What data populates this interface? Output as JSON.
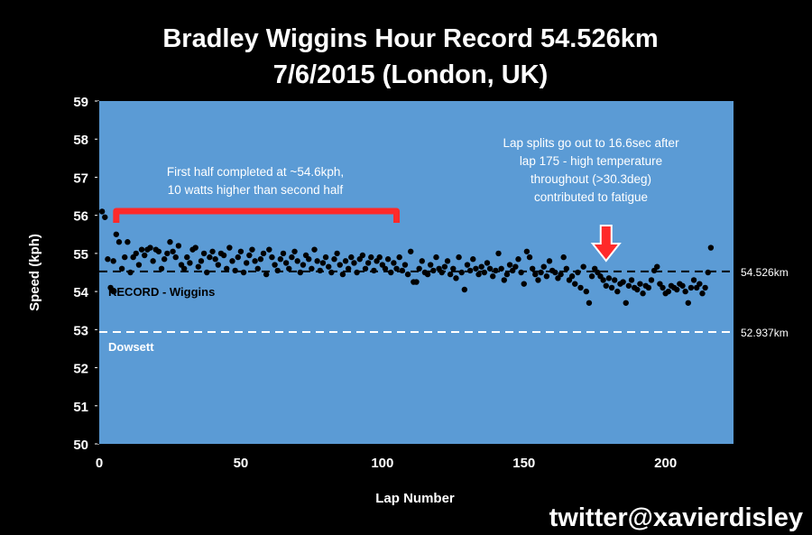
{
  "chart_data": {
    "type": "scatter",
    "title": "Bradley Wiggins Hour Record 54.526km",
    "subtitle": "7/6/2015 (London, UK)",
    "xlabel": "Lap Number",
    "ylabel": "Speed (kph)",
    "xlim": [
      0,
      224
    ],
    "ylim": [
      50,
      59
    ],
    "xticks": [
      0,
      50,
      100,
      150,
      200
    ],
    "yticks": [
      50,
      51,
      52,
      53,
      54,
      55,
      56,
      57,
      58,
      59
    ],
    "grid": false,
    "plot_background": "#5b9bd5",
    "series": [
      {
        "name": "RECORD - Wiggins",
        "color": "#000000",
        "values": [
          56.1,
          55.95,
          54.85,
          54.1,
          54.8,
          55.5,
          55.3,
          54.6,
          54.9,
          55.3,
          54.5,
          54.9,
          55.0,
          54.7,
          55.1,
          54.95,
          55.1,
          55.15,
          54.8,
          55.1,
          55.05,
          54.6,
          54.85,
          55.0,
          55.3,
          55.05,
          54.9,
          55.2,
          54.7,
          54.6,
          54.9,
          54.75,
          55.1,
          55.15,
          54.65,
          54.8,
          55.0,
          54.5,
          54.9,
          55.05,
          54.85,
          54.7,
          55.0,
          54.95,
          54.6,
          55.15,
          54.8,
          54.55,
          54.9,
          55.05,
          54.5,
          54.75,
          54.95,
          55.1,
          54.8,
          54.6,
          54.85,
          55.0,
          54.45,
          55.1,
          54.9,
          54.7,
          54.55,
          54.85,
          55.0,
          54.75,
          54.6,
          54.9,
          55.05,
          54.8,
          54.5,
          54.7,
          54.95,
          54.85,
          54.6,
          55.1,
          54.8,
          54.55,
          54.75,
          54.9,
          54.65,
          54.5,
          54.85,
          55.0,
          54.7,
          54.45,
          54.8,
          54.6,
          54.9,
          54.75,
          54.5,
          54.85,
          54.95,
          54.6,
          54.75,
          54.9,
          54.55,
          54.8,
          54.9,
          54.7,
          54.6,
          54.85,
          54.5,
          54.75,
          54.6,
          54.9,
          54.55,
          54.7,
          54.45,
          55.05,
          54.25,
          54.25,
          54.6,
          54.8,
          54.5,
          54.45,
          54.7,
          54.55,
          54.9,
          54.6,
          54.5,
          54.65,
          54.8,
          54.45,
          54.6,
          54.35,
          54.9,
          54.5,
          54.05,
          54.7,
          54.55,
          54.85,
          54.6,
          54.45,
          54.65,
          54.5,
          54.75,
          54.6,
          54.4,
          54.55,
          55.0,
          54.6,
          54.3,
          54.45,
          54.7,
          54.55,
          54.65,
          54.85,
          54.5,
          54.2,
          55.05,
          54.9,
          54.6,
          54.45,
          54.3,
          54.5,
          54.65,
          54.4,
          54.8,
          54.55,
          54.5,
          54.35,
          54.45,
          54.9,
          54.6,
          54.3,
          54.4,
          54.2,
          54.5,
          54.1,
          54.65,
          54.0,
          53.7,
          54.4,
          54.6,
          54.5,
          54.4,
          54.3,
          54.15,
          54.35,
          54.1,
          54.3,
          54.0,
          54.2,
          54.25,
          53.7,
          54.15,
          54.3,
          54.1,
          54.05,
          54.2,
          53.95,
          54.15,
          54.1,
          54.3,
          54.55,
          54.65,
          54.2,
          54.1,
          53.95,
          54.0,
          54.15,
          54.1,
          54.05,
          54.2,
          54.15,
          54.0,
          53.7,
          54.1,
          54.3,
          54.1,
          54.2,
          53.95,
          54.1,
          54.5,
          55.15
        ]
      }
    ],
    "reference_lines": [
      {
        "label": "54.526km",
        "value": 54.526,
        "color": "#000000",
        "style": "dashed",
        "series_label": "RECORD - Wiggins"
      },
      {
        "label": "52.937km",
        "value": 52.937,
        "color": "#ffffff",
        "style": "dashed",
        "series_label": "Dowsett"
      }
    ],
    "annotations": [
      {
        "lines": [
          "First half completed at ~54.6kph,",
          "10 watts higher than second half"
        ],
        "bracket_laps": [
          6,
          105
        ],
        "color": "#ff2a2a"
      },
      {
        "lines": [
          "Lap splits go out to 16.6sec after",
          "lap 175 - high temperature",
          "throughout (>30.3deg)",
          "contributed to fatigue"
        ],
        "arrow_lap": 179,
        "color": "#ff2a2a"
      }
    ]
  },
  "credit": "twitter@xavierdisley"
}
